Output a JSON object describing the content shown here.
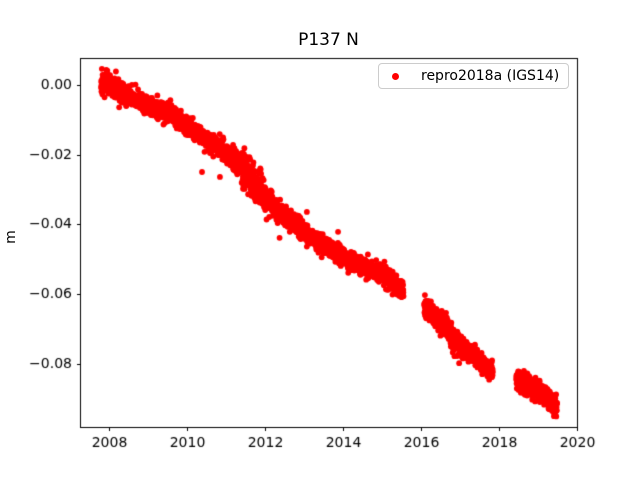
{
  "chart_data": {
    "type": "scatter",
    "title": "P137 N",
    "xlabel": "",
    "ylabel": "m",
    "xlim": [
      2007.25,
      2020.0
    ],
    "ylim": [
      -0.0979,
      0.0076
    ],
    "grid": false,
    "xticks": {
      "values": [
        2008,
        2010,
        2012,
        2014,
        2016,
        2018,
        2020
      ],
      "labels": [
        "2008",
        "2010",
        "2012",
        "2014",
        "2016",
        "2018",
        "2020"
      ]
    },
    "yticks": {
      "values": [
        0.0,
        -0.02,
        -0.04,
        -0.06,
        -0.08
      ],
      "labels": [
        "0.00",
        "−0.02",
        "−0.04",
        "−0.06",
        "−0.08"
      ]
    },
    "axis_color": "#000000",
    "tick_label_color": "#000000",
    "legend": {
      "location": "upper right",
      "label": "repro2018a (IGS14)",
      "marker_color": "#ff0000",
      "border_color": "#cccccc"
    },
    "series": [
      {
        "name": "repro2018a (IGS14)",
        "color": "#ff0000",
        "marker": "dot",
        "marker_radius_px": 2.9,
        "points_per_year": 365,
        "noise_outlier_fraction": 0.012,
        "noise_outlier_extra_m": 0.004,
        "segments": [
          {
            "waypoints": [
              [
                2007.79,
                0.0015,
                0.0019
              ],
              [
                2008.05,
                -0.0005,
                0.0017
              ],
              [
                2008.5,
                -0.0034,
                0.0012
              ],
              [
                2009.0,
                -0.006,
                0.0012
              ],
              [
                2009.55,
                -0.008,
                0.0012
              ],
              [
                2010.0,
                -0.012,
                0.0012
              ],
              [
                2010.5,
                -0.0157,
                0.0012
              ],
              [
                2011.0,
                -0.0195,
                0.0014
              ],
              [
                2011.2,
                -0.0215,
                0.0017
              ],
              [
                2011.75,
                -0.0285,
                0.0021
              ],
              [
                2012.12,
                -0.0337,
                0.0015
              ],
              [
                2012.63,
                -0.039,
                0.0013
              ],
              [
                2013.15,
                -0.0433,
                0.0012
              ],
              [
                2013.66,
                -0.0469,
                0.0012
              ],
              [
                2014.17,
                -0.0504,
                0.0012
              ],
              [
                2014.7,
                -0.0528,
                0.0012
              ],
              [
                2015.2,
                -0.0556,
                0.0013
              ],
              [
                2015.55,
                -0.0588,
                0.0013
              ]
            ]
          },
          {
            "waypoints": [
              [
                2016.08,
                -0.0638,
                0.0013
              ],
              [
                2016.4,
                -0.0667,
                0.0013
              ],
              [
                2016.7,
                -0.0698,
                0.0014
              ],
              [
                2016.9,
                -0.074,
                0.0015
              ],
              [
                2017.15,
                -0.0757,
                0.0013
              ],
              [
                2017.45,
                -0.0782,
                0.0013
              ],
              [
                2017.84,
                -0.0822,
                0.0013
              ]
            ]
          },
          {
            "waypoints": [
              [
                2018.44,
                -0.084,
                0.0014
              ],
              [
                2018.75,
                -0.086,
                0.0014
              ],
              [
                2019.05,
                -0.0878,
                0.0014
              ],
              [
                2019.25,
                -0.0898,
                0.0013
              ],
              [
                2019.49,
                -0.092,
                0.0013
              ]
            ]
          }
        ],
        "outliers": [
          [
            2010.38,
            -0.025
          ],
          [
            2010.84,
            -0.0264
          ],
          [
            2012.37,
            -0.0438
          ],
          [
            2013.07,
            -0.0364
          ],
          [
            2013.45,
            -0.0494
          ],
          [
            2013.87,
            -0.0421
          ],
          [
            2014.94,
            -0.0514
          ],
          [
            2015.06,
            -0.0506
          ],
          [
            2015.1,
            -0.0526
          ]
        ]
      }
    ]
  }
}
